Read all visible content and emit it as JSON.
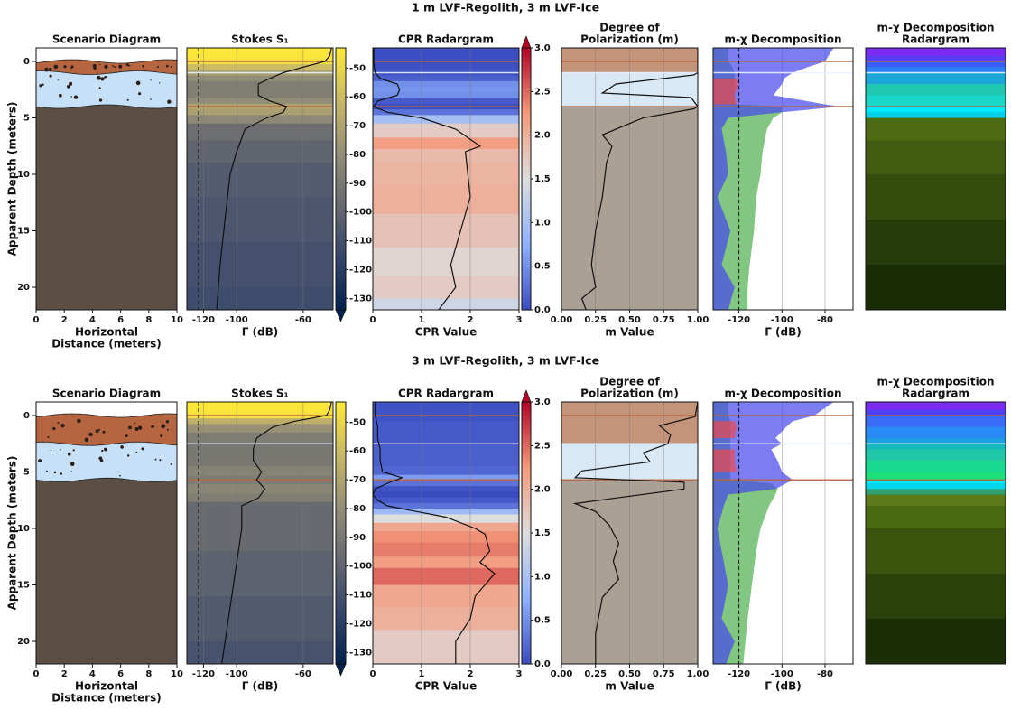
{
  "chart_data": [
    {
      "title": "1 m LVF-Regolith, 3 m LVF-Ice",
      "panels": [
        {
          "type": "scenario",
          "title": "Scenario Diagram",
          "xlabel": [
            "Horizontal",
            "Distance (meters)"
          ],
          "ylabel": "Apparent Depth (meters)",
          "xlim": [
            0,
            10
          ],
          "xticks": [
            0,
            2,
            4,
            6,
            8,
            10
          ],
          "ylim": [
            22,
            -1.2
          ],
          "yticks": [
            0,
            5,
            10,
            15,
            20
          ],
          "layers": {
            "tops": [
              0,
              1,
              4
            ],
            "colors": [
              "#b5653f",
              "#c6e0f7",
              "#5b4e45"
            ]
          }
        },
        {
          "type": "profile",
          "title": "Stokes S₁",
          "xlabel": "Γ (dB)",
          "xlim": [
            -130,
            -42
          ],
          "xticks": [
            -120,
            -100,
            -60
          ],
          "ylim": [
            22,
            -1.2
          ],
          "depth": [
            -1.2,
            -0.5,
            0,
            0.5,
            1,
            1.5,
            2,
            3,
            3.5,
            4,
            4.5,
            5,
            6,
            8,
            10,
            14,
            18,
            22
          ],
          "values": [
            -43,
            -44,
            -47,
            -60,
            -72,
            -80,
            -87,
            -87,
            -80,
            -70,
            -72,
            -82,
            -95,
            -100,
            -104,
            -107,
            -110,
            -112
          ],
          "colormap": [
            "#00224e",
            "#35456c",
            "#666970",
            "#948e77",
            "#c8b866",
            "#fee838"
          ],
          "clim": [
            -134,
            -43
          ],
          "cticks": [
            -50,
            -60,
            -70,
            -80,
            -90,
            -100,
            -110,
            -120,
            -130
          ],
          "extend": "min",
          "reference_line": -123,
          "grid": true
        },
        {
          "type": "profile",
          "title": "CPR Radargram",
          "xlabel": "CPR Value",
          "xlim": [
            0,
            3
          ],
          "xticks": [
            0,
            1,
            2,
            3
          ],
          "ylim": [
            22,
            -1.2
          ],
          "depth": [
            -1.2,
            -0.5,
            0,
            0.5,
            1,
            1.5,
            2,
            2.5,
            3,
            3.5,
            4,
            4.5,
            5,
            6,
            7.5,
            8,
            10,
            12,
            15,
            18,
            20,
            22
          ],
          "values": [
            0.02,
            0.02,
            0.02,
            0.03,
            0.05,
            0.15,
            0.5,
            0.55,
            0.5,
            0.1,
            0.02,
            0.3,
            1.0,
            1.7,
            2.2,
            1.9,
            1.95,
            2.0,
            1.8,
            1.6,
            1.7,
            1.35
          ],
          "colormap": [
            "#3b4cc0",
            "#8db0fe",
            "#dddddd",
            "#f49a7b",
            "#b40426"
          ],
          "clim": [
            0,
            3
          ],
          "cticks": [
            {
              "value": 0,
              "label": "0.0"
            },
            {
              "value": 0.5,
              "label": "0.5"
            },
            {
              "value": 1,
              "label": "1.0"
            },
            {
              "value": 1.5,
              "label": "1.5"
            },
            {
              "value": 2,
              "label": "2.0"
            },
            {
              "value": 2.5,
              "label": "2.5"
            },
            {
              "value": 3,
              "label": "3.0"
            }
          ],
          "extend": "max",
          "grid": true
        },
        {
          "type": "profile",
          "title": [
            "Degree of",
            "Polarization (m)"
          ],
          "xlabel": "m Value",
          "xlim": [
            0,
            1
          ],
          "ylim": [
            22,
            -1.2
          ],
          "xticks": [
            {
              "value": 0,
              "label": "0.00"
            },
            {
              "value": 0.25,
              "label": "0.25"
            },
            {
              "value": 0.5,
              "label": "0.50"
            },
            {
              "value": 0.75,
              "label": "0.75"
            },
            {
              "value": 1,
              "label": "1.00"
            }
          ],
          "depth": [
            -1.2,
            0,
            1,
            1.2,
            2,
            2.8,
            3.2,
            4,
            4.2,
            5,
            6.5,
            7.5,
            9,
            12,
            15,
            18,
            20,
            21,
            22
          ],
          "values": [
            1,
            1,
            1,
            0.97,
            0.4,
            0.3,
            0.95,
            1,
            0.97,
            0.6,
            0.3,
            0.37,
            0.33,
            0.3,
            0.25,
            0.22,
            0.25,
            0.15,
            0.18
          ],
          "layer_colors": [
            "#c4947a",
            "#d9e8f5",
            "#aba094"
          ],
          "grid": true
        },
        {
          "type": "areas",
          "title": "m-χ Decomposition",
          "xlabel": "Γ (dB)",
          "xlim": [
            -132,
            -67
          ],
          "xticks": [
            -120,
            -100,
            -80
          ],
          "ylim": [
            22,
            -1.2
          ],
          "depth": [
            -1.2,
            0,
            0.5,
            1,
            1.5,
            2,
            3,
            3.8,
            4,
            4.5,
            5,
            6,
            8,
            10,
            12,
            15,
            18,
            20,
            22
          ],
          "series": [
            {
              "color": "#4cae4c",
              "values": [
                -125,
                -125,
                -123,
                -122,
                -122,
                -122,
                -122,
                -122,
                -100,
                -100,
                -104,
                -107,
                -109,
                -110,
                -112,
                -113,
                -115,
                -116,
                -116
              ]
            },
            {
              "color": "#4646ee",
              "values": [
                -76,
                -80,
                -88,
                -95,
                -99,
                -100,
                -104,
                -80,
                -73,
                -100,
                -125,
                -128,
                -126,
                -125,
                -130,
                -124,
                -128,
                -122,
                -125
              ]
            },
            {
              "color": "#f04848",
              "values": [
                null,
                null,
                null,
                null,
                -121,
                -120,
                -122,
                -121,
                null,
                null,
                null,
                null,
                null,
                null,
                null,
                null,
                null,
                null,
                null
              ]
            }
          ],
          "reference_line": -120,
          "grid": true
        },
        {
          "type": "bands",
          "title": [
            "m-χ Decomposition",
            "Radargram"
          ],
          "ylim": [
            22,
            -1.2
          ],
          "tops": [
            -1.2,
            -0.5,
            0,
            0.5,
            1,
            2,
            3,
            4,
            4.5,
            5,
            7,
            10,
            14,
            18
          ],
          "colors": [
            "#7b2cf0",
            "#5a3df5",
            "#3a5cf8",
            "#2a80f5",
            "#1aa6d8",
            "#1fc8b0",
            "#17d8c8",
            "#00eaff",
            "#00d0e8",
            "#4c6a10",
            "#405c10",
            "#334d0d",
            "#263c0a",
            "#1a2c06"
          ]
        }
      ]
    },
    {
      "title": "3 m LVF-Regolith, 3 m LVF-Ice",
      "panels": [
        {
          "type": "scenario",
          "title": "Scenario Diagram",
          "xlabel": [
            "Horizontal",
            "Distance (meters)"
          ],
          "ylabel": "Apparent Depth (meters)",
          "xlim": [
            0,
            10
          ],
          "xticks": [
            0,
            2,
            4,
            6,
            8,
            10
          ],
          "ylim": [
            22,
            -1.2
          ],
          "yticks": [
            0,
            5,
            10,
            15,
            20
          ],
          "layers": {
            "tops": [
              0,
              2.5,
              5.7
            ],
            "colors": [
              "#b5653f",
              "#c6e0f7",
              "#5b4e45"
            ]
          }
        },
        {
          "type": "profile",
          "title": "Stokes S₁",
          "xlabel": "Γ (dB)",
          "xlim": [
            -130,
            -42
          ],
          "xticks": [
            -120,
            -100,
            -60
          ],
          "ylim": [
            22,
            -1.2
          ],
          "depth": [
            -1.2,
            -0.5,
            0,
            0.5,
            1,
            2,
            3,
            4,
            5,
            5.7,
            6.5,
            7.3,
            8,
            10,
            14,
            18,
            22
          ],
          "values": [
            -43,
            -44,
            -46,
            -65,
            -78,
            -88,
            -90,
            -90,
            -85,
            -88,
            -83,
            -87,
            -97,
            -97,
            -101,
            -105,
            -109
          ],
          "colormap": [
            "#00224e",
            "#35456c",
            "#666970",
            "#948e77",
            "#c8b866",
            "#fee838"
          ],
          "clim": [
            -134,
            -43
          ],
          "cticks": [
            -50,
            -60,
            -70,
            -80,
            -90,
            -100,
            -110,
            -120,
            -130
          ],
          "extend": "min",
          "reference_line": -123,
          "grid": true
        },
        {
          "type": "profile",
          "title": "CPR Radargram",
          "xlabel": "CPR Value",
          "xlim": [
            0,
            3
          ],
          "xticks": [
            0,
            1,
            2,
            3
          ],
          "ylim": [
            22,
            -1.2
          ],
          "depth": [
            -1.2,
            0,
            1,
            2,
            3,
            4,
            5,
            5.5,
            6,
            6.5,
            7,
            7.5,
            8,
            8.5,
            9,
            10,
            10.5,
            12,
            13,
            14,
            16,
            18,
            20,
            22
          ],
          "values": [
            0.05,
            0.05,
            0.1,
            0.1,
            0.15,
            0.15,
            0.2,
            0.6,
            0.3,
            0.05,
            0,
            0.1,
            0.3,
            0.9,
            1.5,
            2.1,
            2.3,
            2.4,
            2.2,
            2.5,
            2.1,
            2.0,
            1.7,
            1.7
          ],
          "colormap": [
            "#3b4cc0",
            "#8db0fe",
            "#dddddd",
            "#f49a7b",
            "#b40426"
          ],
          "clim": [
            0,
            3
          ],
          "cticks": [
            {
              "value": 0,
              "label": "0.0"
            },
            {
              "value": 0.5,
              "label": "0.5"
            },
            {
              "value": 1,
              "label": "1.0"
            },
            {
              "value": 1.5,
              "label": "1.5"
            },
            {
              "value": 2,
              "label": "2.0"
            },
            {
              "value": 2.5,
              "label": "2.5"
            },
            {
              "value": 3,
              "label": "3.0"
            }
          ],
          "extend": "max",
          "grid": true
        },
        {
          "type": "profile",
          "title": [
            "Degree of",
            "Polarization (m)"
          ],
          "xlabel": "m Value",
          "xlim": [
            0,
            1
          ],
          "ylim": [
            22,
            -1.2
          ],
          "xticks": [
            {
              "value": 0,
              "label": "0.00"
            },
            {
              "value": 0.25,
              "label": "0.25"
            },
            {
              "value": 0.5,
              "label": "0.50"
            },
            {
              "value": 0.75,
              "label": "0.75"
            },
            {
              "value": 1,
              "label": "1.00"
            }
          ],
          "depth": [
            -1.2,
            0.1,
            0.9,
            1.7,
            2.5,
            3.3,
            4.1,
            4.9,
            5.5,
            5.9,
            6.5,
            7.3,
            7.8,
            8.5,
            9.7,
            11.3,
            12.9,
            14.5,
            16.1,
            19.3,
            22
          ],
          "values": [
            1,
            0.98,
            0.72,
            0.8,
            0.78,
            0.6,
            0.65,
            0.15,
            0.1,
            0.9,
            0.9,
            0.4,
            0.1,
            0.25,
            0.35,
            0.42,
            0.38,
            0.42,
            0.3,
            0.25,
            0.25
          ],
          "layer_colors": [
            "#c4947a",
            "#d9e8f5",
            "#aba094"
          ],
          "grid": true
        },
        {
          "type": "areas",
          "title": "m-χ Decomposition",
          "xlabel": "Γ (dB)",
          "xlim": [
            -132,
            -67
          ],
          "xticks": [
            -120,
            -100,
            -80
          ],
          "ylim": [
            22,
            -1.2
          ],
          "depth": [
            -1.2,
            0,
            0.5,
            1,
            2,
            2.5,
            3,
            4,
            5,
            5.7,
            6,
            6.5,
            7,
            8,
            10,
            12,
            15,
            18,
            20,
            22
          ],
          "series": [
            {
              "color": "#4cae4c",
              "values": [
                -125,
                -125,
                -124,
                -124,
                -124,
                -124,
                -124,
                -124,
                -124,
                -124,
                -105,
                -102,
                -103,
                -106,
                -110,
                -112,
                -114,
                -116,
                -117,
                -118
              ]
            },
            {
              "color": "#4646ee",
              "values": [
                -76,
                -85,
                -95,
                -98,
                -103,
                -100,
                -105,
                -102,
                -100,
                -95,
                -98,
                -103,
                -125,
                -127,
                -130,
                -128,
                -125,
                -128,
                -122,
                -126
              ]
            },
            {
              "color": "#f04848",
              "values": [
                null,
                null,
                -122,
                -121,
                -122,
                null,
                -122,
                -122,
                -121,
                null,
                null,
                null,
                null,
                null,
                null,
                null,
                null,
                null,
                null,
                null
              ]
            }
          ],
          "reference_line": -120,
          "grid": true
        },
        {
          "type": "bands",
          "title": [
            "m-χ Decomposition",
            "Radargram"
          ],
          "ylim": [
            22,
            -1.2
          ],
          "tops": [
            -1.2,
            -0.5,
            0,
            1,
            2,
            2.5,
            3,
            4,
            5,
            5.7,
            6,
            6.5,
            7,
            8,
            10,
            14,
            18
          ],
          "colors": [
            "#7b2cf0",
            "#5040f5",
            "#3a6af8",
            "#2a8af5",
            "#1aa0e0",
            "#18b8c0",
            "#20c8a8",
            "#19d890",
            "#1ae07a",
            "#00e8ff",
            "#00d8f0",
            "#30a070",
            "#5a7a18",
            "#4a6a12",
            "#3a560e",
            "#2a420a",
            "#1c2e06"
          ]
        }
      ]
    }
  ]
}
